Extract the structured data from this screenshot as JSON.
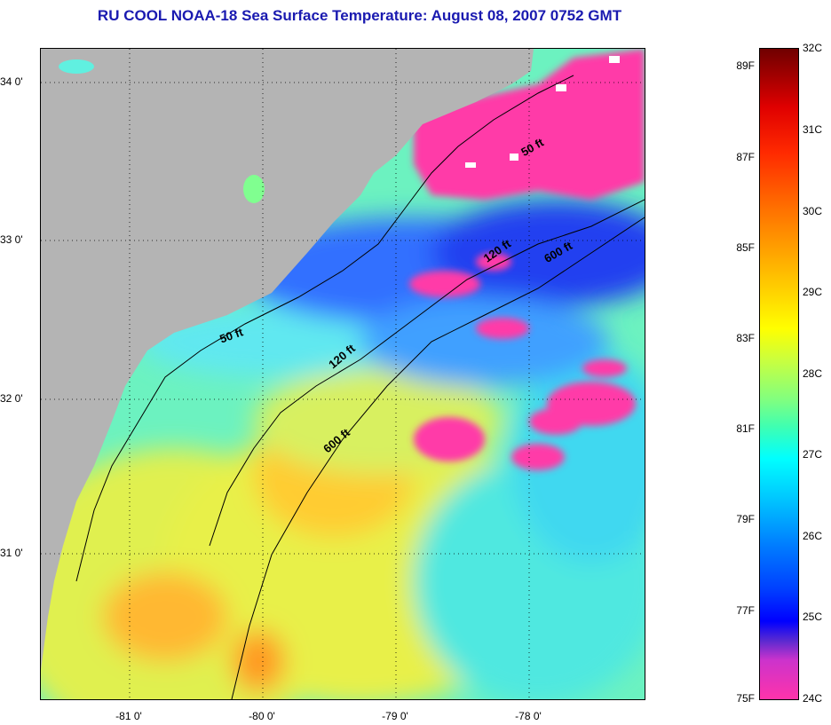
{
  "title": "RU COOL  NOAA-18  Sea Surface Temperature:  August 08, 2007 0752 GMT",
  "map": {
    "lon_labels": [
      "-81 0'",
      "-80 0'",
      "-79 0'",
      "-78 0'"
    ],
    "lat_labels": [
      "34 0'",
      "33 0'",
      "32 0'",
      "31 0'"
    ],
    "depth_labels": [
      "50 ft",
      "120 ft",
      "600 ft",
      "50 ft",
      "120 ft",
      "600 ft"
    ],
    "colors": {
      "land": "#b4b4b4",
      "cool_pink": "#ff3aa8",
      "blue": "#2a3cff",
      "cyan": "#40e8ff",
      "green": "#80ff90",
      "yellow": "#e8f040",
      "orange": "#ffb020",
      "cloud": "#ffffff"
    }
  },
  "colorbar": {
    "fahrenheit": [
      "89F",
      "87F",
      "85F",
      "83F",
      "81F",
      "79F",
      "77F",
      "75F"
    ],
    "celsius": [
      "32C",
      "31C",
      "30C",
      "29C",
      "28C",
      "27C",
      "26C",
      "25C",
      "24C"
    ]
  }
}
